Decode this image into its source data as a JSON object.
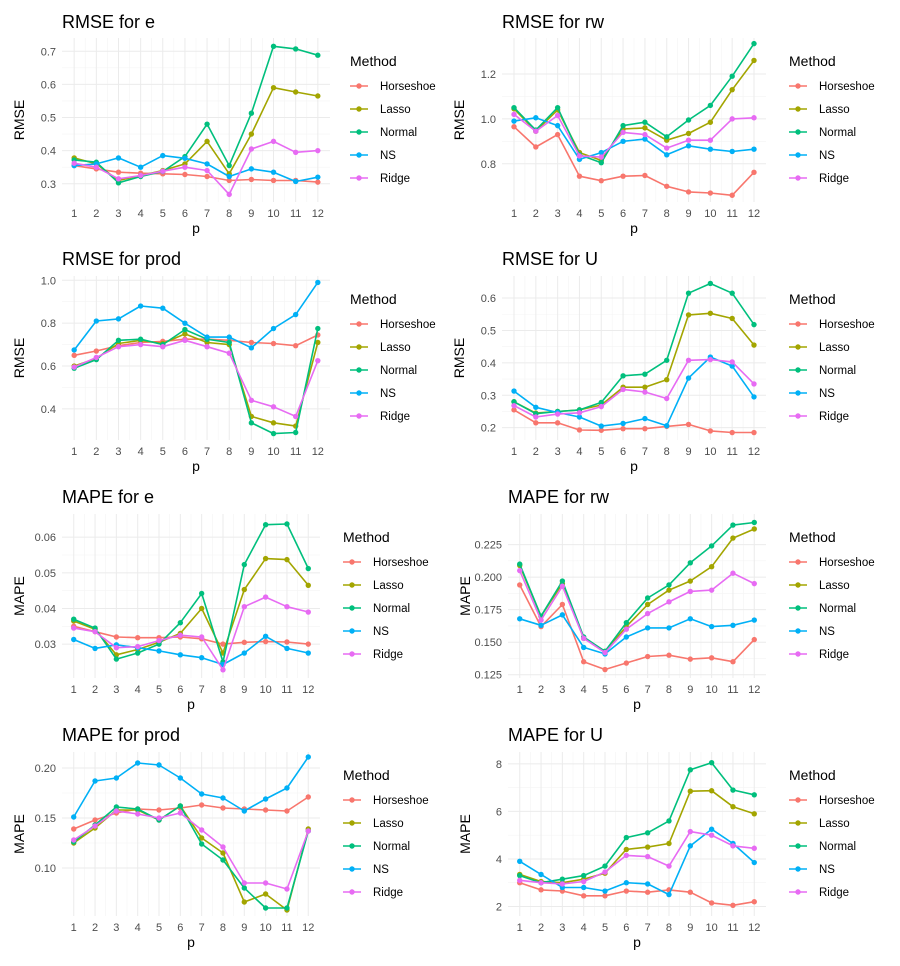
{
  "colors": {
    "Horseshoe": "#F8766D",
    "Lasso": "#A3A500",
    "Normal": "#00BF7D",
    "NS": "#00B0F6",
    "Ridge": "#E76BF3"
  },
  "chart_data": [
    {
      "type": "line",
      "title": "RMSE for e",
      "xlabel": "p",
      "ylabel": "RMSE",
      "legend_title": "Method",
      "x": [
        1,
        2,
        3,
        4,
        5,
        6,
        7,
        8,
        9,
        10,
        11,
        12
      ],
      "ylim": [
        0.245,
        0.74
      ],
      "yticks": [
        0.3,
        0.4,
        0.5,
        0.6,
        0.7
      ],
      "ytick_labels": [
        "0.3",
        "0.4",
        "0.5",
        "0.6",
        "0.7"
      ],
      "series": [
        {
          "name": "Horseshoe",
          "values": [
            0.355,
            0.345,
            0.335,
            0.332,
            0.33,
            0.328,
            0.322,
            0.31,
            0.313,
            0.31,
            0.31,
            0.305
          ]
        },
        {
          "name": "Lasso",
          "values": [
            0.378,
            0.36,
            0.31,
            0.325,
            0.34,
            0.36,
            0.428,
            0.33,
            0.45,
            0.59,
            0.577,
            0.565
          ]
        },
        {
          "name": "Normal",
          "values": [
            0.372,
            0.365,
            0.303,
            0.322,
            0.337,
            0.382,
            0.48,
            0.355,
            0.513,
            0.715,
            0.707,
            0.688
          ]
        },
        {
          "name": "NS",
          "values": [
            0.355,
            0.36,
            0.378,
            0.35,
            0.385,
            0.377,
            0.36,
            0.322,
            0.345,
            0.335,
            0.307,
            0.32
          ]
        },
        {
          "name": "Ridge",
          "values": [
            0.362,
            0.35,
            0.315,
            0.325,
            0.338,
            0.35,
            0.34,
            0.268,
            0.405,
            0.428,
            0.395,
            0.4
          ]
        }
      ]
    },
    {
      "type": "line",
      "title": "RMSE for rw",
      "xlabel": "p",
      "ylabel": "RMSE",
      "legend_title": "Method",
      "x": [
        1,
        2,
        3,
        4,
        5,
        6,
        7,
        8,
        9,
        10,
        11,
        12
      ],
      "ylim": [
        0.63,
        1.36
      ],
      "yticks": [
        0.8,
        1.0,
        1.2
      ],
      "ytick_labels": [
        "0.8",
        "1.0",
        "1.2"
      ],
      "series": [
        {
          "name": "Horseshoe",
          "values": [
            0.965,
            0.875,
            0.93,
            0.745,
            0.725,
            0.745,
            0.748,
            0.7,
            0.675,
            0.67,
            0.66,
            0.762
          ]
        },
        {
          "name": "Lasso",
          "values": [
            1.045,
            0.945,
            1.04,
            0.85,
            0.815,
            0.955,
            0.96,
            0.905,
            0.935,
            0.985,
            1.13,
            1.26
          ]
        },
        {
          "name": "Normal",
          "values": [
            1.05,
            0.95,
            1.05,
            0.84,
            0.805,
            0.97,
            0.985,
            0.92,
            0.995,
            1.06,
            1.19,
            1.335
          ]
        },
        {
          "name": "NS",
          "values": [
            0.99,
            1.005,
            0.97,
            0.82,
            0.85,
            0.9,
            0.91,
            0.84,
            0.88,
            0.865,
            0.855,
            0.865
          ]
        },
        {
          "name": "Ridge",
          "values": [
            1.02,
            0.945,
            1.015,
            0.835,
            0.83,
            0.94,
            0.93,
            0.87,
            0.905,
            0.905,
            1.0,
            1.005
          ]
        }
      ]
    },
    {
      "type": "line",
      "title": "RMSE for prod",
      "xlabel": "p",
      "ylabel": "RMSE",
      "legend_title": "Method",
      "x": [
        1,
        2,
        3,
        4,
        5,
        6,
        7,
        8,
        9,
        10,
        11,
        12
      ],
      "ylim": [
        0.255,
        1.02
      ],
      "yticks": [
        0.4,
        0.6,
        0.8,
        1.0
      ],
      "ytick_labels": [
        "0.4",
        "0.6",
        "0.8",
        "1.0"
      ],
      "series": [
        {
          "name": "Horseshoe",
          "values": [
            0.65,
            0.67,
            0.695,
            0.71,
            0.715,
            0.725,
            0.725,
            0.72,
            0.71,
            0.705,
            0.695,
            0.745
          ]
        },
        {
          "name": "Lasso",
          "values": [
            0.6,
            0.635,
            0.705,
            0.72,
            0.705,
            0.75,
            0.71,
            0.7,
            0.365,
            0.335,
            0.32,
            0.71
          ]
        },
        {
          "name": "Normal",
          "values": [
            0.59,
            0.63,
            0.72,
            0.725,
            0.7,
            0.77,
            0.725,
            0.71,
            0.335,
            0.285,
            0.29,
            0.775
          ]
        },
        {
          "name": "NS",
          "values": [
            0.675,
            0.81,
            0.82,
            0.88,
            0.87,
            0.8,
            0.735,
            0.735,
            0.685,
            0.775,
            0.84,
            0.99
          ]
        },
        {
          "name": "Ridge",
          "values": [
            0.595,
            0.64,
            0.69,
            0.7,
            0.69,
            0.72,
            0.69,
            0.66,
            0.44,
            0.41,
            0.365,
            0.625
          ]
        }
      ]
    },
    {
      "type": "line",
      "title": "RMSE for U",
      "xlabel": "p",
      "ylabel": "RMSE",
      "legend_title": "Method",
      "x": [
        1,
        2,
        3,
        4,
        5,
        6,
        7,
        8,
        9,
        10,
        11,
        12
      ],
      "ylim": [
        0.162,
        0.668
      ],
      "yticks": [
        0.2,
        0.3,
        0.4,
        0.5,
        0.6
      ],
      "ytick_labels": [
        "0.2",
        "0.3",
        "0.4",
        "0.5",
        "0.6"
      ],
      "series": [
        {
          "name": "Horseshoe",
          "values": [
            0.255,
            0.215,
            0.215,
            0.193,
            0.192,
            0.197,
            0.197,
            0.204,
            0.21,
            0.19,
            0.185,
            0.185
          ]
        },
        {
          "name": "Lasso",
          "values": [
            0.28,
            0.245,
            0.25,
            0.255,
            0.27,
            0.325,
            0.325,
            0.348,
            0.548,
            0.553,
            0.537,
            0.455
          ]
        },
        {
          "name": "Normal",
          "values": [
            0.28,
            0.243,
            0.25,
            0.255,
            0.278,
            0.36,
            0.365,
            0.408,
            0.615,
            0.645,
            0.615,
            0.518
          ]
        },
        {
          "name": "NS",
          "values": [
            0.313,
            0.263,
            0.247,
            0.233,
            0.205,
            0.213,
            0.228,
            0.206,
            0.353,
            0.418,
            0.39,
            0.295
          ]
        },
        {
          "name": "Ridge",
          "values": [
            0.268,
            0.233,
            0.242,
            0.246,
            0.265,
            0.318,
            0.31,
            0.29,
            0.408,
            0.41,
            0.403,
            0.335
          ]
        }
      ]
    },
    {
      "type": "line",
      "title": "MAPE for e",
      "xlabel": "p",
      "ylabel": "MAPE",
      "legend_title": "Method",
      "x": [
        1,
        2,
        3,
        4,
        5,
        6,
        7,
        8,
        9,
        10,
        11,
        12
      ],
      "ylim": [
        0.0205,
        0.0665
      ],
      "yticks": [
        0.03,
        0.04,
        0.05,
        0.06
      ],
      "ytick_labels": [
        "0.03",
        "0.04",
        "0.05",
        "0.06"
      ],
      "series": [
        {
          "name": "Horseshoe",
          "values": [
            0.035,
            0.0335,
            0.032,
            0.0318,
            0.0318,
            0.032,
            0.0315,
            0.03,
            0.0305,
            0.0307,
            0.0306,
            0.03
          ]
        },
        {
          "name": "Lasso",
          "values": [
            0.0365,
            0.0342,
            0.027,
            0.0285,
            0.0305,
            0.033,
            0.04,
            0.0275,
            0.0453,
            0.054,
            0.0537,
            0.0465
          ]
        },
        {
          "name": "Normal",
          "values": [
            0.037,
            0.0345,
            0.0258,
            0.0275,
            0.03,
            0.036,
            0.0442,
            0.025,
            0.0523,
            0.0635,
            0.0637,
            0.0512
          ]
        },
        {
          "name": "NS",
          "values": [
            0.0313,
            0.0288,
            0.0298,
            0.029,
            0.0281,
            0.027,
            0.0262,
            0.0243,
            0.0275,
            0.0322,
            0.0288,
            0.0275
          ]
        },
        {
          "name": "Ridge",
          "values": [
            0.0345,
            0.0335,
            0.029,
            0.0293,
            0.031,
            0.0325,
            0.032,
            0.0228,
            0.0405,
            0.0432,
            0.0405,
            0.039
          ]
        }
      ]
    },
    {
      "type": "line",
      "title": "MAPE for rw",
      "xlabel": "p",
      "ylabel": "MAPE",
      "legend_title": "Method",
      "x": [
        1,
        2,
        3,
        4,
        5,
        6,
        7,
        8,
        9,
        10,
        11,
        12
      ],
      "ylim": [
        0.1225,
        0.2485
      ],
      "yticks": [
        0.125,
        0.15,
        0.175,
        0.2,
        0.225
      ],
      "ytick_labels": [
        "0.125",
        "0.150",
        "0.175",
        "0.200",
        "0.225"
      ],
      "series": [
        {
          "name": "Horseshoe",
          "values": [
            0.194,
            0.162,
            0.179,
            0.135,
            0.129,
            0.134,
            0.139,
            0.14,
            0.137,
            0.138,
            0.135,
            0.152
          ]
        },
        {
          "name": "Lasso",
          "values": [
            0.209,
            0.17,
            0.195,
            0.153,
            0.143,
            0.162,
            0.179,
            0.19,
            0.197,
            0.208,
            0.23,
            0.237
          ]
        },
        {
          "name": "Normal",
          "values": [
            0.21,
            0.17,
            0.197,
            0.154,
            0.143,
            0.165,
            0.184,
            0.194,
            0.211,
            0.224,
            0.24,
            0.242
          ]
        },
        {
          "name": "NS",
          "values": [
            0.168,
            0.163,
            0.171,
            0.146,
            0.141,
            0.154,
            0.161,
            0.161,
            0.168,
            0.162,
            0.163,
            0.167
          ]
        },
        {
          "name": "Ridge",
          "values": [
            0.205,
            0.167,
            0.193,
            0.153,
            0.142,
            0.16,
            0.172,
            0.181,
            0.189,
            0.19,
            0.203,
            0.195
          ]
        }
      ]
    },
    {
      "type": "line",
      "title": "MAPE for prod",
      "xlabel": "p",
      "ylabel": "MAPE",
      "legend_title": "Method",
      "x": [
        1,
        2,
        3,
        4,
        5,
        6,
        7,
        8,
        9,
        10,
        11,
        12
      ],
      "ylim": [
        0.052,
        0.216
      ],
      "yticks": [
        0.1,
        0.15,
        0.2
      ],
      "ytick_labels": [
        "0.10",
        "0.15",
        "0.20"
      ],
      "series": [
        {
          "name": "Horseshoe",
          "values": [
            0.139,
            0.148,
            0.155,
            0.159,
            0.158,
            0.16,
            0.163,
            0.16,
            0.159,
            0.158,
            0.157,
            0.171
          ]
        },
        {
          "name": "Lasso",
          "values": [
            0.125,
            0.14,
            0.158,
            0.158,
            0.148,
            0.162,
            0.13,
            0.115,
            0.066,
            0.074,
            0.058,
            0.139
          ]
        },
        {
          "name": "Normal",
          "values": [
            0.126,
            0.143,
            0.161,
            0.159,
            0.148,
            0.162,
            0.124,
            0.108,
            0.08,
            0.06,
            0.06,
            0.137
          ]
        },
        {
          "name": "NS",
          "values": [
            0.151,
            0.187,
            0.19,
            0.205,
            0.203,
            0.19,
            0.174,
            0.17,
            0.157,
            0.169,
            0.18,
            0.211
          ]
        },
        {
          "name": "Ridge",
          "values": [
            0.128,
            0.142,
            0.157,
            0.154,
            0.15,
            0.155,
            0.138,
            0.121,
            0.085,
            0.085,
            0.079,
            0.137
          ]
        }
      ]
    },
    {
      "type": "line",
      "title": "MAPE for U",
      "xlabel": "p",
      "ylabel": "MAPE",
      "legend_title": "Method",
      "x": [
        1,
        2,
        3,
        4,
        5,
        6,
        7,
        8,
        9,
        10,
        11,
        12
      ],
      "ylim": [
        1.6,
        8.5
      ],
      "yticks": [
        2,
        4,
        6,
        8
      ],
      "ytick_labels": [
        "2",
        "4",
        "6",
        "8"
      ],
      "series": [
        {
          "name": "Horseshoe",
          "values": [
            3.0,
            2.7,
            2.65,
            2.45,
            2.45,
            2.65,
            2.6,
            2.7,
            2.6,
            2.15,
            2.05,
            2.2
          ]
        },
        {
          "name": "Lasso",
          "values": [
            3.35,
            3.05,
            3.0,
            3.15,
            3.4,
            4.4,
            4.5,
            4.65,
            6.85,
            6.87,
            6.2,
            5.9
          ]
        },
        {
          "name": "Normal",
          "values": [
            3.3,
            3.0,
            3.15,
            3.3,
            3.7,
            4.9,
            5.1,
            5.6,
            7.75,
            8.05,
            6.9,
            6.7
          ]
        },
        {
          "name": "NS",
          "values": [
            3.9,
            3.35,
            2.8,
            2.8,
            2.65,
            3.0,
            2.95,
            2.5,
            4.55,
            5.25,
            4.65,
            3.85
          ]
        },
        {
          "name": "Ridge",
          "values": [
            3.1,
            3.0,
            2.95,
            3.05,
            3.45,
            4.15,
            4.1,
            3.7,
            5.15,
            5.0,
            4.55,
            4.45
          ]
        }
      ]
    }
  ]
}
